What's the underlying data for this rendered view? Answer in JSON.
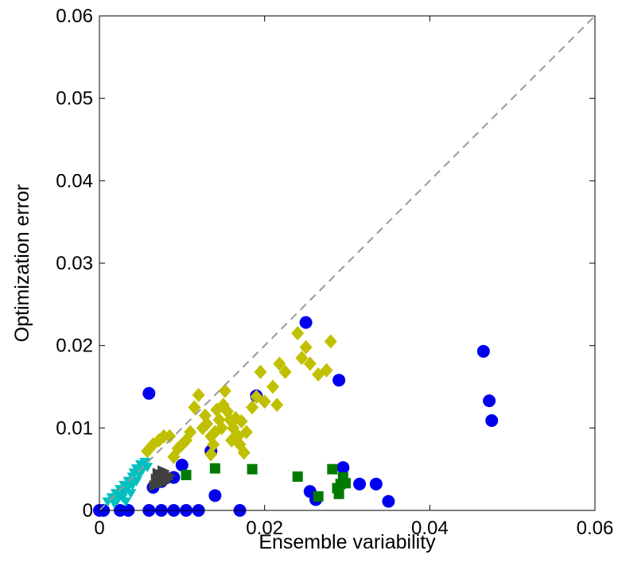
{
  "chart_data": {
    "type": "scatter",
    "title": "",
    "xlabel": "Ensemble variability",
    "ylabel": "Optimization error",
    "xlim": [
      0,
      0.06
    ],
    "ylim": [
      0,
      0.06
    ],
    "xticks": [
      "0",
      "0.02",
      "0.04",
      "0.06"
    ],
    "yticks": [
      "0",
      "0.01",
      "0.02",
      "0.03",
      "0.04",
      "0.05",
      "0.06"
    ],
    "xtick_values": [
      0,
      0.02,
      0.04,
      0.06
    ],
    "ytick_values": [
      0,
      0.01,
      0.02,
      0.03,
      0.04,
      0.05,
      0.06
    ],
    "grid": false,
    "reference_line": {
      "style": "dashed",
      "color": "#999999",
      "from": [
        0,
        0
      ],
      "to": [
        0.06,
        0.06
      ]
    },
    "series": [
      {
        "marker": "circle",
        "color": "#0000ee",
        "points": [
          [
            0.0,
            0.0
          ],
          [
            0.0005,
            0.0
          ],
          [
            0.0025,
            0.0
          ],
          [
            0.0035,
            0.0
          ],
          [
            0.006,
            0.0
          ],
          [
            0.0075,
            0.0
          ],
          [
            0.009,
            0.0
          ],
          [
            0.0105,
            0.0
          ],
          [
            0.012,
            0.0
          ],
          [
            0.017,
            0.0
          ],
          [
            0.0065,
            0.0028
          ],
          [
            0.0075,
            0.0035
          ],
          [
            0.009,
            0.004
          ],
          [
            0.01,
            0.0055
          ],
          [
            0.014,
            0.0018
          ],
          [
            0.0135,
            0.0072
          ],
          [
            0.006,
            0.0142
          ],
          [
            0.019,
            0.0139
          ],
          [
            0.025,
            0.0228
          ],
          [
            0.029,
            0.0158
          ],
          [
            0.0255,
            0.0023
          ],
          [
            0.0262,
            0.0013
          ],
          [
            0.0295,
            0.0052
          ],
          [
            0.0315,
            0.0032
          ],
          [
            0.0335,
            0.0032
          ],
          [
            0.035,
            0.0011
          ],
          [
            0.0465,
            0.0193
          ],
          [
            0.0472,
            0.0133
          ],
          [
            0.0475,
            0.0109
          ]
        ]
      },
      {
        "marker": "diamond",
        "color": "#c0c000",
        "points": [
          [
            0.0058,
            0.0072
          ],
          [
            0.0065,
            0.008
          ],
          [
            0.0072,
            0.0085
          ],
          [
            0.0078,
            0.009
          ],
          [
            0.0085,
            0.009
          ],
          [
            0.009,
            0.0065
          ],
          [
            0.0095,
            0.0075
          ],
          [
            0.01,
            0.008
          ],
          [
            0.0105,
            0.0085
          ],
          [
            0.011,
            0.0095
          ],
          [
            0.0115,
            0.0125
          ],
          [
            0.012,
            0.014
          ],
          [
            0.0125,
            0.01
          ],
          [
            0.0128,
            0.0115
          ],
          [
            0.013,
            0.0105
          ],
          [
            0.0135,
            0.009
          ],
          [
            0.0135,
            0.0068
          ],
          [
            0.0138,
            0.008
          ],
          [
            0.014,
            0.0095
          ],
          [
            0.0142,
            0.0122
          ],
          [
            0.0145,
            0.011
          ],
          [
            0.0148,
            0.01
          ],
          [
            0.015,
            0.0128
          ],
          [
            0.0152,
            0.0145
          ],
          [
            0.0155,
            0.012
          ],
          [
            0.0158,
            0.011
          ],
          [
            0.016,
            0.0085
          ],
          [
            0.0162,
            0.01
          ],
          [
            0.0165,
            0.0112
          ],
          [
            0.0168,
            0.009
          ],
          [
            0.017,
            0.008
          ],
          [
            0.0172,
            0.0108
          ],
          [
            0.0175,
            0.007
          ],
          [
            0.0178,
            0.0095
          ],
          [
            0.0185,
            0.0125
          ],
          [
            0.019,
            0.0138
          ],
          [
            0.0195,
            0.0168
          ],
          [
            0.02,
            0.0132
          ],
          [
            0.021,
            0.015
          ],
          [
            0.0215,
            0.0128
          ],
          [
            0.0218,
            0.0178
          ],
          [
            0.0225,
            0.0168
          ],
          [
            0.024,
            0.0215
          ],
          [
            0.0245,
            0.0185
          ],
          [
            0.025,
            0.0198
          ],
          [
            0.0255,
            0.0178
          ],
          [
            0.0265,
            0.0165
          ],
          [
            0.0275,
            0.017
          ],
          [
            0.028,
            0.0205
          ]
        ]
      },
      {
        "marker": "square",
        "color": "#007a00",
        "points": [
          [
            0.0105,
            0.0043
          ],
          [
            0.014,
            0.0051
          ],
          [
            0.0185,
            0.005
          ],
          [
            0.024,
            0.0041
          ],
          [
            0.0265,
            0.0017
          ],
          [
            0.0282,
            0.005
          ],
          [
            0.0288,
            0.0027
          ],
          [
            0.029,
            0.002
          ],
          [
            0.0292,
            0.0032
          ],
          [
            0.0295,
            0.004
          ],
          [
            0.0298,
            0.0033
          ]
        ]
      },
      {
        "marker": "arrow",
        "color": "#00c0c0",
        "points": [
          [
            0.001,
            0.001
          ],
          [
            0.0015,
            0.0015
          ],
          [
            0.0018,
            0.0008
          ],
          [
            0.002,
            0.002
          ],
          [
            0.0022,
            0.0012
          ],
          [
            0.0025,
            0.0018
          ],
          [
            0.0025,
            0.0025
          ],
          [
            0.0028,
            0.0015
          ],
          [
            0.003,
            0.0022
          ],
          [
            0.003,
            0.003
          ],
          [
            0.0032,
            0.001
          ],
          [
            0.0035,
            0.0028
          ],
          [
            0.0035,
            0.0035
          ],
          [
            0.0038,
            0.002
          ],
          [
            0.004,
            0.003
          ],
          [
            0.004,
            0.004
          ],
          [
            0.0042,
            0.0045
          ],
          [
            0.0045,
            0.0035
          ],
          [
            0.0045,
            0.005
          ],
          [
            0.0048,
            0.0042
          ],
          [
            0.005,
            0.0055
          ],
          [
            0.0052,
            0.0048
          ],
          [
            0.0055,
            0.0058
          ],
          [
            0.0058,
            0.0052
          ]
        ]
      },
      {
        "marker": "triangle",
        "color": "#404040",
        "points": [
          [
            0.0068,
            0.003
          ],
          [
            0.007,
            0.0038
          ],
          [
            0.0072,
            0.0045
          ],
          [
            0.0073,
            0.0033
          ],
          [
            0.0075,
            0.0042
          ],
          [
            0.0076,
            0.0036
          ],
          [
            0.0078,
            0.0048
          ],
          [
            0.0079,
            0.004
          ],
          [
            0.008,
            0.0034
          ],
          [
            0.0082,
            0.0044
          ],
          [
            0.0083,
            0.0038
          ],
          [
            0.0085,
            0.0042
          ]
        ]
      }
    ]
  }
}
